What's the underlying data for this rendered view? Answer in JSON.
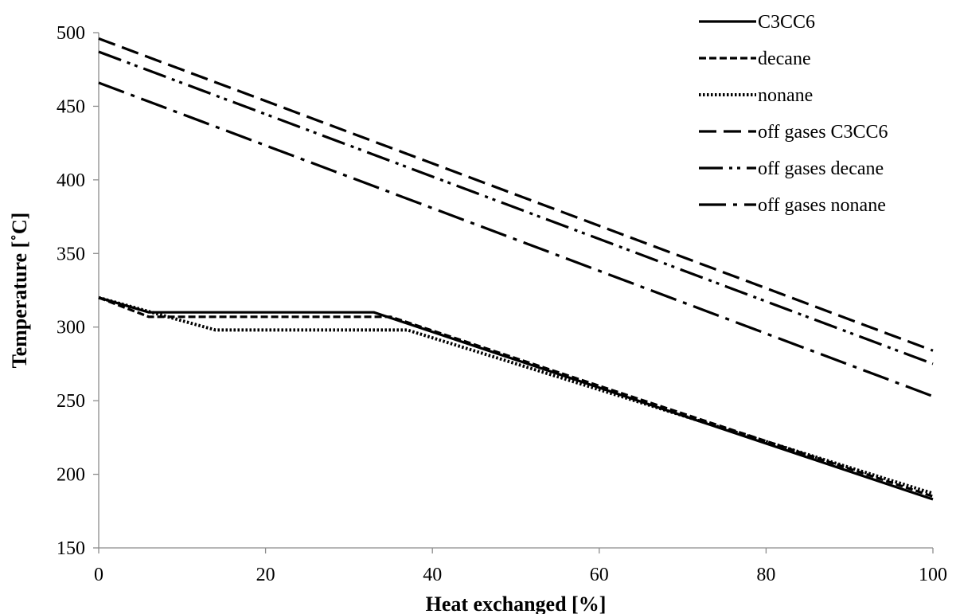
{
  "chart_data": {
    "type": "line",
    "title": "",
    "xlabel": "Heat exchanged [%]",
    "ylabel": "Temperature [˚C]",
    "xlim": [
      0,
      100
    ],
    "ylim": [
      150,
      500
    ],
    "xticks": [
      0,
      20,
      40,
      60,
      80,
      100
    ],
    "yticks": [
      150,
      200,
      250,
      300,
      350,
      400,
      450,
      500
    ],
    "grid": false,
    "legend_position": "top-right",
    "series": [
      {
        "name": "C3CC6",
        "style": "solid",
        "x": [
          0,
          6,
          33,
          100
        ],
        "y": [
          320,
          310,
          310,
          183
        ]
      },
      {
        "name": "decane",
        "style": "dashed",
        "x": [
          0,
          6,
          35,
          100
        ],
        "y": [
          320,
          307,
          307,
          185
        ]
      },
      {
        "name": "nonane",
        "style": "dotted",
        "x": [
          0,
          14,
          37,
          100
        ],
        "y": [
          320,
          298,
          298,
          187
        ]
      },
      {
        "name": "off gases C3CC6",
        "style": "long-dash",
        "x": [
          0,
          100
        ],
        "y": [
          496,
          284
        ]
      },
      {
        "name": "off gases decane",
        "style": "long-dash-dot-dot",
        "x": [
          0,
          100
        ],
        "y": [
          487,
          275
        ]
      },
      {
        "name": "off gases nonane",
        "style": "long-dash-dot",
        "x": [
          0,
          100
        ],
        "y": [
          466,
          253
        ]
      }
    ]
  }
}
